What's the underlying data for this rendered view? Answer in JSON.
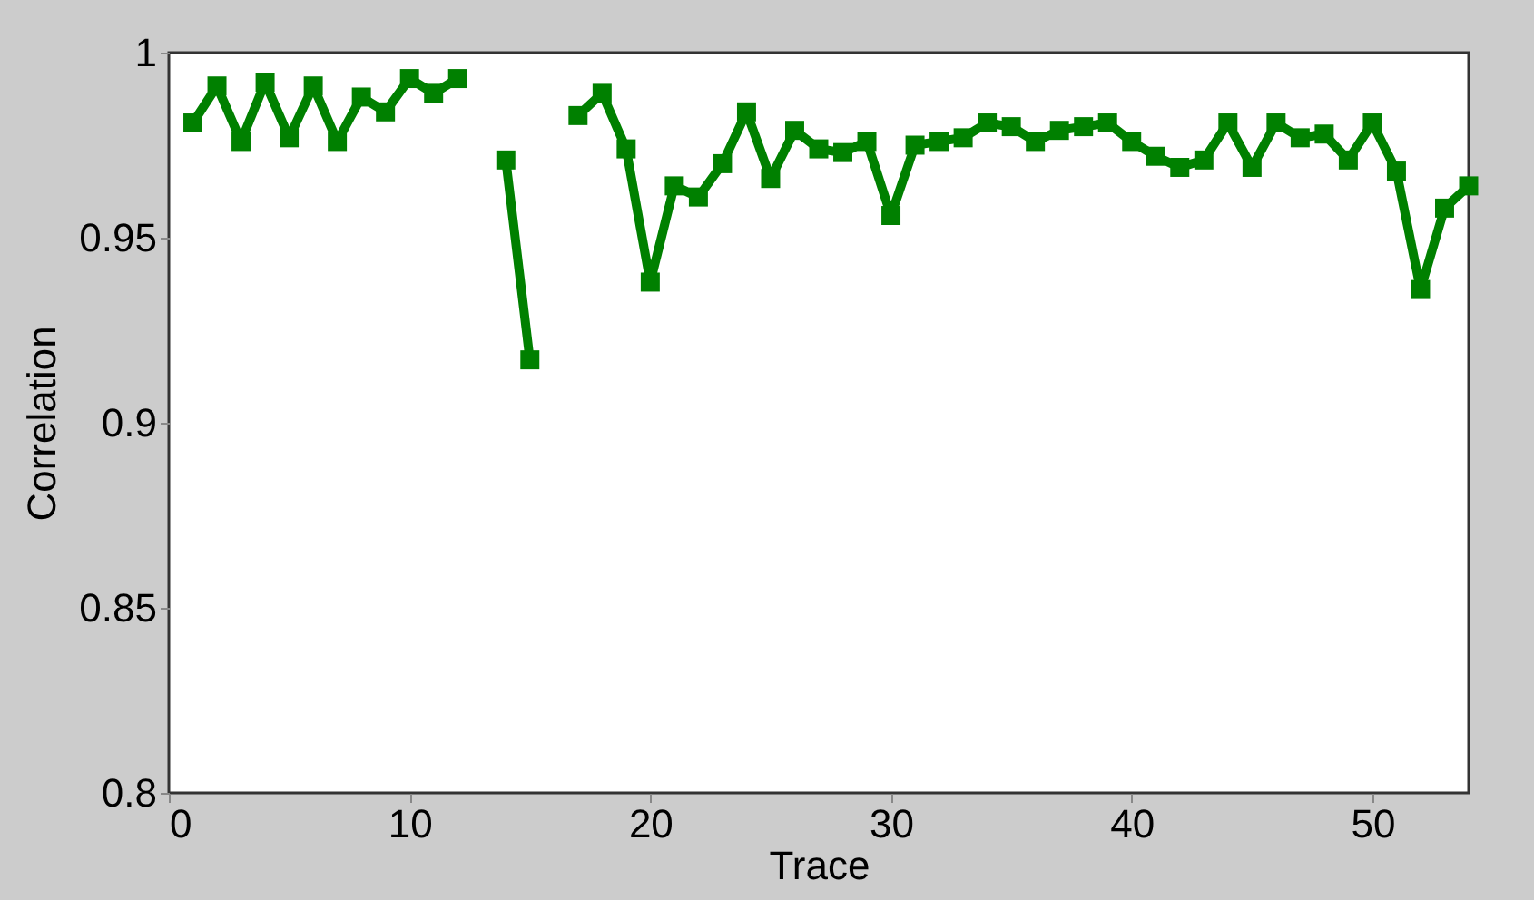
{
  "chart_data": {
    "type": "line",
    "xlabel": "Trace",
    "ylabel": "Correlation",
    "x": [
      1,
      2,
      3,
      4,
      5,
      6,
      7,
      8,
      9,
      10,
      11,
      12,
      13,
      14,
      15,
      16,
      17,
      18,
      19,
      20,
      21,
      22,
      23,
      24,
      25,
      26,
      27,
      28,
      29,
      30,
      31,
      32,
      33,
      34,
      35,
      36,
      37,
      38,
      39,
      40,
      41,
      42,
      43,
      44,
      45,
      46,
      47,
      48,
      49,
      50,
      51,
      52,
      53,
      54
    ],
    "series": [
      {
        "color": "#008000",
        "values": [
          0.981,
          0.991,
          0.976,
          0.992,
          0.977,
          0.991,
          0.976,
          0.988,
          0.984,
          0.993,
          0.989,
          0.993,
          null,
          0.971,
          0.917,
          null,
          0.983,
          0.989,
          0.974,
          0.938,
          0.964,
          0.961,
          0.97,
          0.984,
          0.966,
          0.979,
          0.974,
          0.973,
          0.976,
          0.956,
          0.975,
          0.976,
          0.977,
          0.981,
          0.98,
          0.976,
          0.979,
          0.98,
          0.981,
          0.976,
          0.972,
          0.969,
          0.971,
          0.981,
          0.969,
          0.981,
          0.977,
          0.978,
          0.971,
          0.981,
          0.968,
          0.936,
          0.958,
          0.964
        ]
      }
    ],
    "xlim": [
      0,
      54
    ],
    "xticks": [
      0,
      10,
      20,
      30,
      40,
      50
    ],
    "ylim": [
      0.8,
      1
    ],
    "yticks": [
      0.8,
      0.85,
      0.9,
      0.95,
      1
    ],
    "grid": false,
    "marker": "square",
    "line_style": "solid"
  }
}
